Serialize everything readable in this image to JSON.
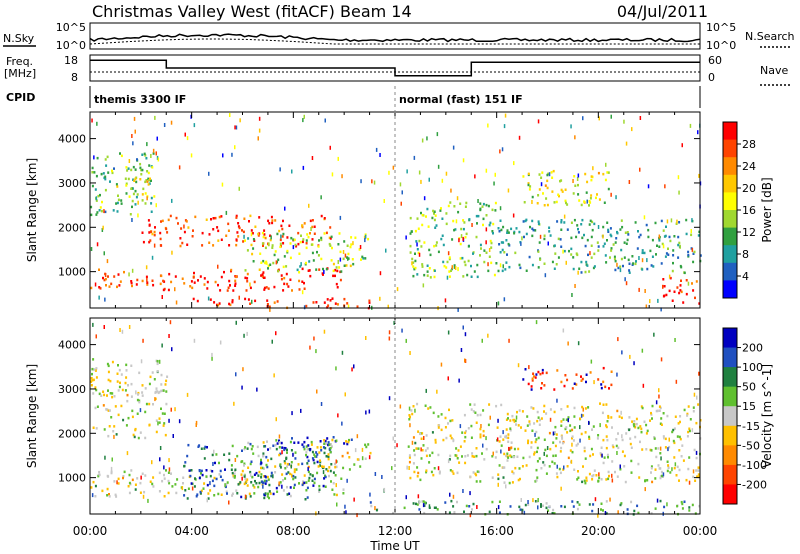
{
  "header": {
    "title": "Christmas Valley West (fitACF)",
    "beam": "Beam 14",
    "date": "04/Jul/2011"
  },
  "status_panels": {
    "nsky_label": "N.Sky",
    "nsky_ticks": [
      "10^5",
      "10^0"
    ],
    "nsearch_label": "N.Search",
    "nsearch_ticks": [
      "10^5",
      "10^0"
    ],
    "freq_label_line1": "Freq.",
    "freq_label_line2": "[MHz]",
    "freq_ticks": [
      "18",
      "8"
    ],
    "nave_label": "Nave",
    "nave_ticks": [
      "60",
      "0"
    ],
    "cpid_label": "CPID",
    "cpid_segments": [
      {
        "label": "themis 3300 IF",
        "start_hour": 0,
        "end_hour": 12
      },
      {
        "label": "normal (fast) 151 IF",
        "start_hour": 12,
        "end_hour": 24
      }
    ],
    "freq_steps": [
      {
        "start_hour": 0,
        "end_hour": 3,
        "level": 0.8
      },
      {
        "start_hour": 3,
        "end_hour": 12,
        "level": 0.5
      },
      {
        "start_hour": 12,
        "end_hour": 15,
        "level": 0.2
      },
      {
        "start_hour": 15,
        "end_hour": 24,
        "level": 0.72
      }
    ]
  },
  "chart_data": [
    {
      "type": "heatmap",
      "name": "power",
      "ylabel": "Slant Range [km]",
      "x_ticks": [
        "00:00",
        "04:00",
        "08:00",
        "12:00",
        "16:00",
        "20:00",
        "00:00"
      ],
      "xlabel": "Time UT",
      "xlim_hours": [
        0,
        24
      ],
      "ylim_km": [
        180,
        4600
      ],
      "y_ticks": [
        1000,
        2000,
        3000,
        4000
      ],
      "colorbar_label": "Power [dB]",
      "colorbar_ticks": [
        "28",
        "24",
        "20",
        "16",
        "12",
        "8",
        "4"
      ],
      "colorbar_colors": [
        "#ff0000",
        "#ff4400",
        "#ff8a00",
        "#ffc800",
        "#ffff00",
        "#a0d830",
        "#30a040",
        "#20a0a0",
        "#2060c0",
        "#0000ff"
      ],
      "echo_regions": [
        {
          "t0": 0.0,
          "t1": 2.5,
          "r0": 2300,
          "r1": 3700,
          "level": 0.35
        },
        {
          "t0": 1.0,
          "t1": 2.5,
          "r0": 2600,
          "r1": 3200,
          "level": 0.55
        },
        {
          "t0": 0.0,
          "t1": 10.0,
          "r0": 600,
          "r1": 1100,
          "level": 0.9
        },
        {
          "t0": 2.0,
          "t1": 9.5,
          "r0": 1600,
          "r1": 2300,
          "level": 0.85
        },
        {
          "t0": 4.0,
          "t1": 11.5,
          "r0": 200,
          "r1": 420,
          "level": 0.95
        },
        {
          "t0": 6.0,
          "t1": 11.0,
          "r0": 1000,
          "r1": 1900,
          "level": 0.45
        },
        {
          "t0": 12.5,
          "t1": 16.0,
          "r0": 900,
          "r1": 2600,
          "level": 0.4
        },
        {
          "t0": 16.0,
          "t1": 24.0,
          "r0": 1000,
          "r1": 2200,
          "level": 0.3
        },
        {
          "t0": 17.0,
          "t1": 20.5,
          "r0": 2500,
          "r1": 3300,
          "level": 0.55
        },
        {
          "t0": 22.5,
          "t1": 24.0,
          "r0": 300,
          "r1": 900,
          "level": 0.9
        }
      ]
    },
    {
      "type": "heatmap",
      "name": "velocity",
      "ylabel": "Slant Range [km]",
      "x_ticks": [
        "00:00",
        "04:00",
        "08:00",
        "12:00",
        "16:00",
        "20:00",
        "00:00"
      ],
      "xlabel": "Time UT",
      "xlim_hours": [
        0,
        24
      ],
      "ylim_km": [
        180,
        4600
      ],
      "y_ticks": [
        1000,
        2000,
        3000,
        4000
      ],
      "colorbar_label": "Velocity [m s^-1]",
      "colorbar_ticks": [
        "200",
        "100",
        "50",
        "15",
        "-15",
        "-50",
        "-100",
        "-200"
      ],
      "colorbar_colors": [
        "#0000c0",
        "#2050c0",
        "#208040",
        "#60c030",
        "#c8c8c8",
        "#ffc000",
        "#ff8a00",
        "#ff4400",
        "#ff0000"
      ],
      "echo_regions": [
        {
          "t0": 0.0,
          "t1": 3.0,
          "r0": 1900,
          "r1": 3700,
          "level": 0.5
        },
        {
          "t0": 0.0,
          "t1": 10.0,
          "r0": 600,
          "r1": 1200,
          "level": 0.5
        },
        {
          "t0": 3.5,
          "t1": 9.5,
          "r0": 500,
          "r1": 1800,
          "level": 0.78
        },
        {
          "t0": 7.0,
          "t1": 10.5,
          "r0": 1650,
          "r1": 1950,
          "level": 0.95
        },
        {
          "t0": 6.0,
          "t1": 11.0,
          "r0": 1200,
          "r1": 1900,
          "level": 0.5
        },
        {
          "t0": 12.5,
          "t1": 24.0,
          "r0": 900,
          "r1": 2700,
          "level": 0.5
        },
        {
          "t0": 17.0,
          "t1": 20.5,
          "r0": 3000,
          "r1": 3500,
          "level": 0.1
        },
        {
          "t0": 11.0,
          "t1": 24.0,
          "r0": 200,
          "r1": 500,
          "level": 0.65
        }
      ]
    }
  ]
}
